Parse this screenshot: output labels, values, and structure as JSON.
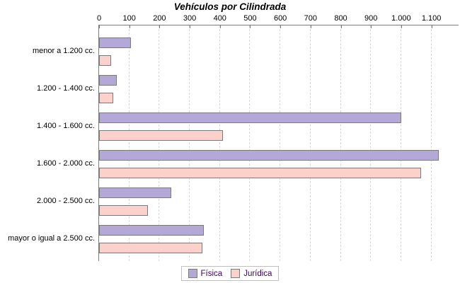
{
  "title": "Vehículos por Cilindrada",
  "chart_data": {
    "type": "bar",
    "orientation": "horizontal",
    "title": "Vehículos por Cilindrada",
    "categories": [
      "menor a 1.200 cc.",
      "1.200 - 1.400 cc.",
      "1.400 - 1.600 cc.",
      "1.600 - 2.000 cc.",
      "2.000 - 2.500 cc.",
      "mayor o igual a 2.500 cc."
    ],
    "series": [
      {
        "name": "Física",
        "color": "#b3a8d7",
        "values": [
          100,
          55,
          995,
          1120,
          235,
          342
        ]
      },
      {
        "name": "Jurídica",
        "color": "#fdd1cb",
        "values": [
          35,
          42,
          405,
          1060,
          157,
          338
        ]
      }
    ],
    "x_ticks": [
      0,
      100,
      200,
      300,
      400,
      500,
      600,
      700,
      800,
      900,
      1000,
      1100
    ],
    "x_tick_labels": [
      "0",
      "100",
      "200",
      "300",
      "400",
      "500",
      "600",
      "700",
      "800",
      "900",
      "1.000",
      "1.100"
    ],
    "xlim": [
      0,
      1190
    ],
    "grid": "vertical-dashed",
    "axis_position": "top",
    "legend_position": "bottom-center"
  },
  "colors": {
    "background": "#ffffff",
    "bar_border": "#7b7b7b",
    "axis_line": "#7d7d7d",
    "gridline": "#d8d8d8",
    "legend_text": "#3a0066",
    "legend_border": "#c0c0c0"
  }
}
